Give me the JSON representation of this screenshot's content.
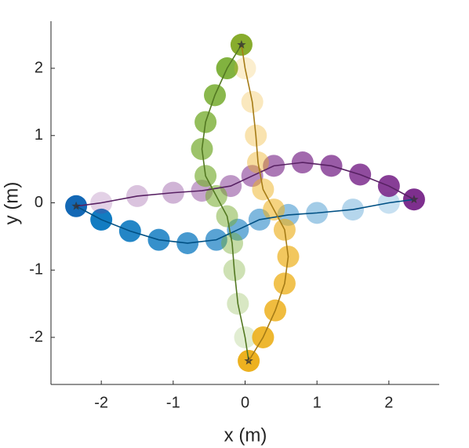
{
  "chart_data": {
    "type": "trajectory",
    "xlabel": "x (m)",
    "ylabel": "y (m)",
    "xlim": [
      -2.7,
      2.7
    ],
    "ylim": [
      -2.7,
      2.7
    ],
    "xticks": [
      -2,
      -1,
      0,
      1,
      2
    ],
    "yticks": [
      -2,
      -1,
      0,
      1,
      2
    ],
    "series": [
      {
        "color": "#0072bd",
        "x": [
          -2.35,
          -2.0,
          -1.6,
          -1.2,
          -0.8,
          -0.4,
          -0.1,
          0.2,
          0.6,
          1.0,
          1.5,
          2.0,
          2.35
        ],
        "values": [
          -0.05,
          -0.25,
          -0.42,
          -0.55,
          -0.6,
          -0.55,
          -0.4,
          -0.25,
          -0.18,
          -0.15,
          -0.1,
          0.0,
          0.05
        ]
      },
      {
        "color": "#7e2f8e",
        "x": [
          2.35,
          2.0,
          1.6,
          1.2,
          0.8,
          0.4,
          0.1,
          -0.2,
          -0.6,
          -1.0,
          -1.5,
          -2.0,
          -2.35
        ],
        "values": [
          0.05,
          0.25,
          0.42,
          0.55,
          0.6,
          0.55,
          0.4,
          0.25,
          0.18,
          0.15,
          0.1,
          0.0,
          -0.05
        ]
      },
      {
        "color": "#77ac30",
        "x": [
          -0.05,
          -0.25,
          -0.42,
          -0.55,
          -0.6,
          -0.55,
          -0.4,
          -0.25,
          -0.18,
          -0.15,
          -0.1,
          0.0,
          0.05
        ],
        "values": [
          2.35,
          2.0,
          1.6,
          1.2,
          0.8,
          0.4,
          0.1,
          -0.2,
          -0.6,
          -1.0,
          -1.5,
          -2.0,
          -2.35
        ]
      },
      {
        "color": "#edb120",
        "x": [
          0.05,
          0.25,
          0.42,
          0.55,
          0.6,
          0.55,
          0.4,
          0.25,
          0.18,
          0.15,
          0.1,
          0.0,
          -0.05
        ],
        "values": [
          -2.35,
          -2.0,
          -1.6,
          -1.2,
          -0.8,
          -0.4,
          -0.1,
          0.2,
          0.6,
          1.0,
          1.5,
          2.0,
          2.35
        ]
      }
    ]
  }
}
